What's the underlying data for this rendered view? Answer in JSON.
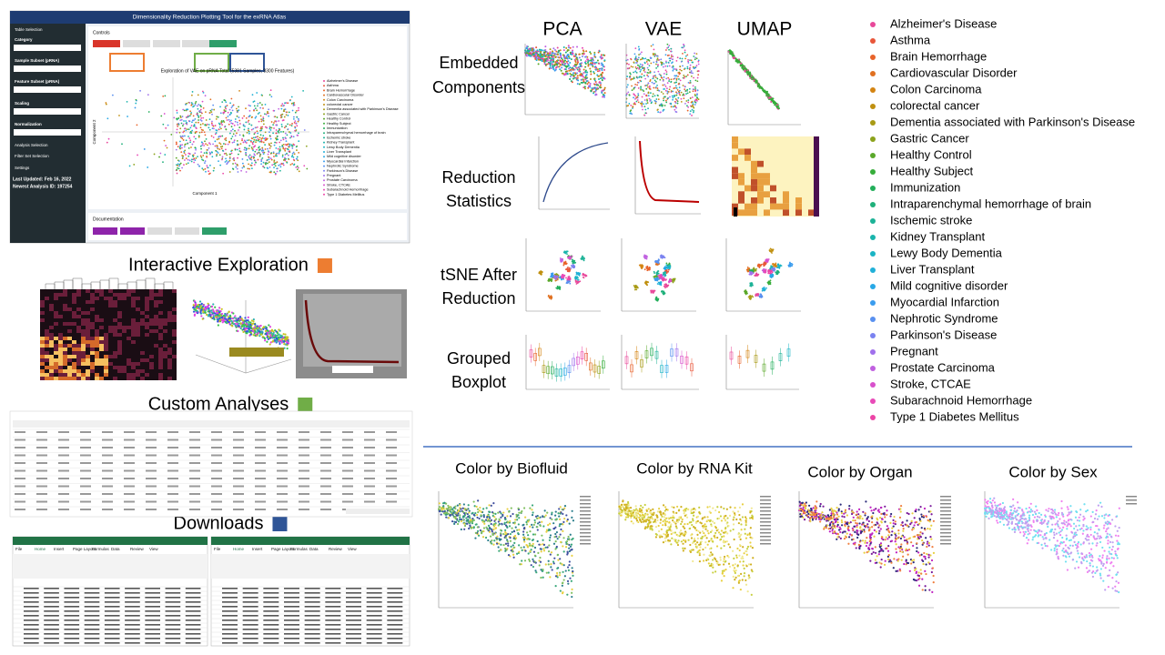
{
  "app": {
    "title": "Dimensionality Reduction Plotting Tool for the exRNA Atlas",
    "sidebar": [
      "Table Selection",
      "Category",
      "Sample Subset (pRNA)",
      "Feature Subset (pRNA)",
      "Scaling",
      "Normalization",
      "Analysis Selection",
      "Filter Set Selection",
      "Settings"
    ],
    "last_updated": "Last Updated: Feb 16, 2022",
    "newest_analysis": "Newest Analysis ID: 197254",
    "controls": "Controls",
    "documentation": "Documentation",
    "plot_title": "Exploration of VAE on pRNA Total (5381 Samples, 8300 Features)",
    "x_label": "Component 1",
    "y_label": "Component 2"
  },
  "sections": [
    {
      "label": "Interactive Exploration",
      "color": "#ed7d31"
    },
    {
      "label": "Custom Analyses",
      "color": "#70ad47"
    },
    {
      "label": "Downloads",
      "color": "#2f5597"
    }
  ],
  "methods": [
    "PCA",
    "VAE",
    "UMAP"
  ],
  "rows": [
    [
      "Embedded",
      "Components"
    ],
    [
      "Reduction",
      "Statistics"
    ],
    [
      "tSNE After",
      "Reduction"
    ],
    [
      "Grouped",
      "Boxplot"
    ]
  ],
  "legend": [
    {
      "name": "Alzheimer's Disease",
      "color": "#e8489a"
    },
    {
      "name": "Asthma",
      "color": "#e8563a"
    },
    {
      "name": "Brain Hemorrhage",
      "color": "#e8632a"
    },
    {
      "name": "Cardiovascular Disorder",
      "color": "#e07020"
    },
    {
      "name": "Colon Carcinoma",
      "color": "#d48412"
    },
    {
      "name": "colorectal cancer",
      "color": "#c09010"
    },
    {
      "name": "Dementia associated with Parkinson's Disease",
      "color": "#a89a14"
    },
    {
      "name": "Gastric Cancer",
      "color": "#8ca21c"
    },
    {
      "name": "Healthy Control",
      "color": "#5aa82a"
    },
    {
      "name": "Healthy Subject",
      "color": "#36ad3a"
    },
    {
      "name": "Immunization",
      "color": "#22ae5a"
    },
    {
      "name": "Intraparenchymal hemorrhage of brain",
      "color": "#1fb07a"
    },
    {
      "name": "Ischemic stroke",
      "color": "#1cb296"
    },
    {
      "name": "Kidney Transplant",
      "color": "#1ab4ac"
    },
    {
      "name": "Lewy Body Dementia",
      "color": "#1ab4c4"
    },
    {
      "name": "Liver Transplant",
      "color": "#20b0d8"
    },
    {
      "name": "Mild cognitive disorder",
      "color": "#28a8e6"
    },
    {
      "name": "Myocardial Infarction",
      "color": "#3a9cee"
    },
    {
      "name": "Nephrotic Syndrome",
      "color": "#5890f0"
    },
    {
      "name": "Parkinson's Disease",
      "color": "#7a82f0"
    },
    {
      "name": "Pregnant",
      "color": "#a070ec"
    },
    {
      "name": "Prostate Carcinoma",
      "color": "#c060e0"
    },
    {
      "name": "Stroke, CTCAE",
      "color": "#d850cc"
    },
    {
      "name": "Subarachnoid Hemorrhage",
      "color": "#e84ab8"
    },
    {
      "name": "Type 1 Diabetes Mellitus",
      "color": "#ec44a6"
    }
  ],
  "color_by": [
    "Color by Biofluid",
    "Color by RNA Kit",
    "Color by Organ",
    "Color by Sex"
  ],
  "excel_tabs": [
    "File",
    "Home",
    "Insert",
    "Page Layout",
    "Formulas",
    "Data",
    "Review",
    "View"
  ]
}
